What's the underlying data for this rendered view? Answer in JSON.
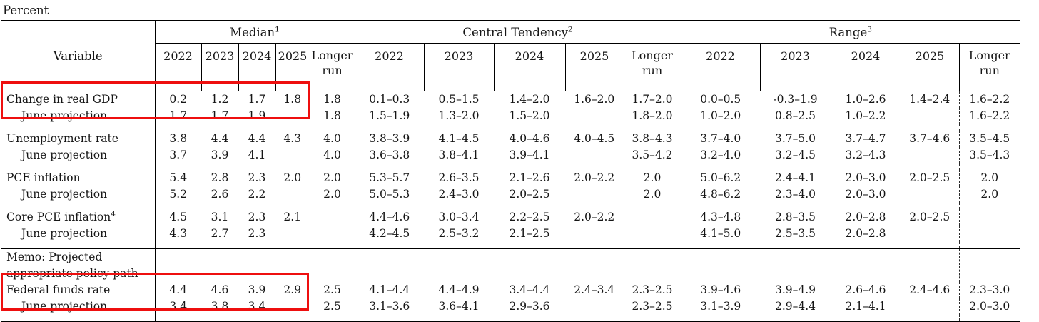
{
  "page": {
    "unit_label": "Percent"
  },
  "highlight_color": "#ee0f0f",
  "table": {
    "variable_header": "Variable",
    "years": [
      "2022",
      "2023",
      "2024",
      "2025"
    ],
    "longer_run": "Longer run",
    "sections": [
      {
        "label": "Median",
        "sup": "1"
      },
      {
        "label": "Central Tendency",
        "sup": "2"
      },
      {
        "label": "Range",
        "sup": "3"
      }
    ],
    "rows": [
      {
        "name": "change-in-real-gdp",
        "lines": [
          "Change in real GDP"
        ],
        "indent": false,
        "median": [
          "0.2",
          "1.2",
          "1.7",
          "1.8",
          "1.8"
        ],
        "ct": [
          "0.1–0.3",
          "0.5–1.5",
          "1.4–2.0",
          "1.6–2.0",
          "1.7–2.0"
        ],
        "range": [
          "0.0–0.5",
          "-0.3–1.9",
          "1.0–2.6",
          "1.4–2.4",
          "1.6–2.2"
        ]
      },
      {
        "name": "gdp-june-projection",
        "lines": [
          "June projection"
        ],
        "indent": true,
        "median": [
          "1.7",
          "1.7",
          "1.9",
          "",
          "1.8"
        ],
        "ct": [
          "1.5–1.9",
          "1.3–2.0",
          "1.5–2.0",
          "",
          "1.8–2.0"
        ],
        "range": [
          "1.0–2.0",
          "0.8–2.5",
          "1.0–2.2",
          "",
          "1.6–2.2"
        ]
      },
      {
        "name": "unemployment-rate",
        "lines": [
          "Unemployment rate"
        ],
        "indent": false,
        "spacer_before": true,
        "median": [
          "3.8",
          "4.4",
          "4.4",
          "4.3",
          "4.0"
        ],
        "ct": [
          "3.8–3.9",
          "4.1–4.5",
          "4.0–4.6",
          "4.0–4.5",
          "3.8–4.3"
        ],
        "range": [
          "3.7–4.0",
          "3.7–5.0",
          "3.7–4.7",
          "3.7–4.6",
          "3.5–4.5"
        ]
      },
      {
        "name": "unemployment-june-projection",
        "lines": [
          "June projection"
        ],
        "indent": true,
        "median": [
          "3.7",
          "3.9",
          "4.1",
          "",
          "4.0"
        ],
        "ct": [
          "3.6–3.8",
          "3.8–4.1",
          "3.9–4.1",
          "",
          "3.5–4.2"
        ],
        "range": [
          "3.2–4.0",
          "3.2–4.5",
          "3.2–4.3",
          "",
          "3.5–4.3"
        ]
      },
      {
        "name": "pce-inflation",
        "lines": [
          "PCE inflation"
        ],
        "indent": false,
        "spacer_before": true,
        "median": [
          "5.4",
          "2.8",
          "2.3",
          "2.0",
          "2.0"
        ],
        "ct": [
          "5.3–5.7",
          "2.6–3.5",
          "2.1–2.6",
          "2.0–2.2",
          "2.0"
        ],
        "range": [
          "5.0–6.2",
          "2.4–4.1",
          "2.0–3.0",
          "2.0–2.5",
          "2.0"
        ]
      },
      {
        "name": "pce-june-projection",
        "lines": [
          "June projection"
        ],
        "indent": true,
        "median": [
          "5.2",
          "2.6",
          "2.2",
          "",
          "2.0"
        ],
        "ct": [
          "5.0–5.3",
          "2.4–3.0",
          "2.0–2.5",
          "",
          "2.0"
        ],
        "range": [
          "4.8–6.2",
          "2.3–4.0",
          "2.0–3.0",
          "",
          "2.0"
        ]
      },
      {
        "name": "core-pce-inflation",
        "lines": [
          "Core PCE inflation"
        ],
        "sup": "4",
        "indent": false,
        "spacer_before": true,
        "median": [
          "4.5",
          "3.1",
          "2.3",
          "2.1",
          ""
        ],
        "ct": [
          "4.4–4.6",
          "3.0–3.4",
          "2.2–2.5",
          "2.0–2.2",
          ""
        ],
        "range": [
          "4.3–4.8",
          "2.8–3.5",
          "2.0–2.8",
          "2.0–2.5",
          ""
        ]
      },
      {
        "name": "core-pce-june-projection",
        "lines": [
          "June projection"
        ],
        "indent": true,
        "median": [
          "4.3",
          "2.7",
          "2.3",
          "",
          ""
        ],
        "ct": [
          "4.2–4.5",
          "2.5–3.2",
          "2.1–2.5",
          "",
          ""
        ],
        "range": [
          "4.1–5.0",
          "2.5–3.5",
          "2.0–2.8",
          "",
          ""
        ]
      },
      {
        "name": "memo-policy-path",
        "lines": [
          "Memo: Projected",
          "appropriate policy path"
        ],
        "indent": false,
        "spacer_before": true,
        "rule_before": true,
        "median": [
          "",
          "",
          "",
          "",
          ""
        ],
        "ct": [
          "",
          "",
          "",
          "",
          ""
        ],
        "range": [
          "",
          "",
          "",
          "",
          ""
        ]
      },
      {
        "name": "federal-funds-rate",
        "lines": [
          "Federal funds rate"
        ],
        "indent": false,
        "median": [
          "4.4",
          "4.6",
          "3.9",
          "2.9",
          "2.5"
        ],
        "ct": [
          "4.1–4.4",
          "4.4–4.9",
          "3.4–4.4",
          "2.4–3.4",
          "2.3–2.5"
        ],
        "range": [
          "3.9–4.6",
          "3.9–4.9",
          "2.6–4.6",
          "2.4–4.6",
          "2.3–3.0"
        ]
      },
      {
        "name": "federal-funds-june-projection",
        "lines": [
          "June projection"
        ],
        "indent": true,
        "median": [
          "3.4",
          "3.8",
          "3.4",
          "",
          "2.5"
        ],
        "ct": [
          "3.1–3.6",
          "3.6–4.1",
          "2.9–3.6",
          "",
          "2.3–2.5"
        ],
        "range": [
          "3.1–3.9",
          "2.9–4.4",
          "2.1–4.1",
          "",
          "2.0–3.0"
        ]
      }
    ]
  },
  "highlights": [
    {
      "name": "highlight-box-gdp"
    },
    {
      "name": "highlight-box-federal-funds"
    }
  ]
}
